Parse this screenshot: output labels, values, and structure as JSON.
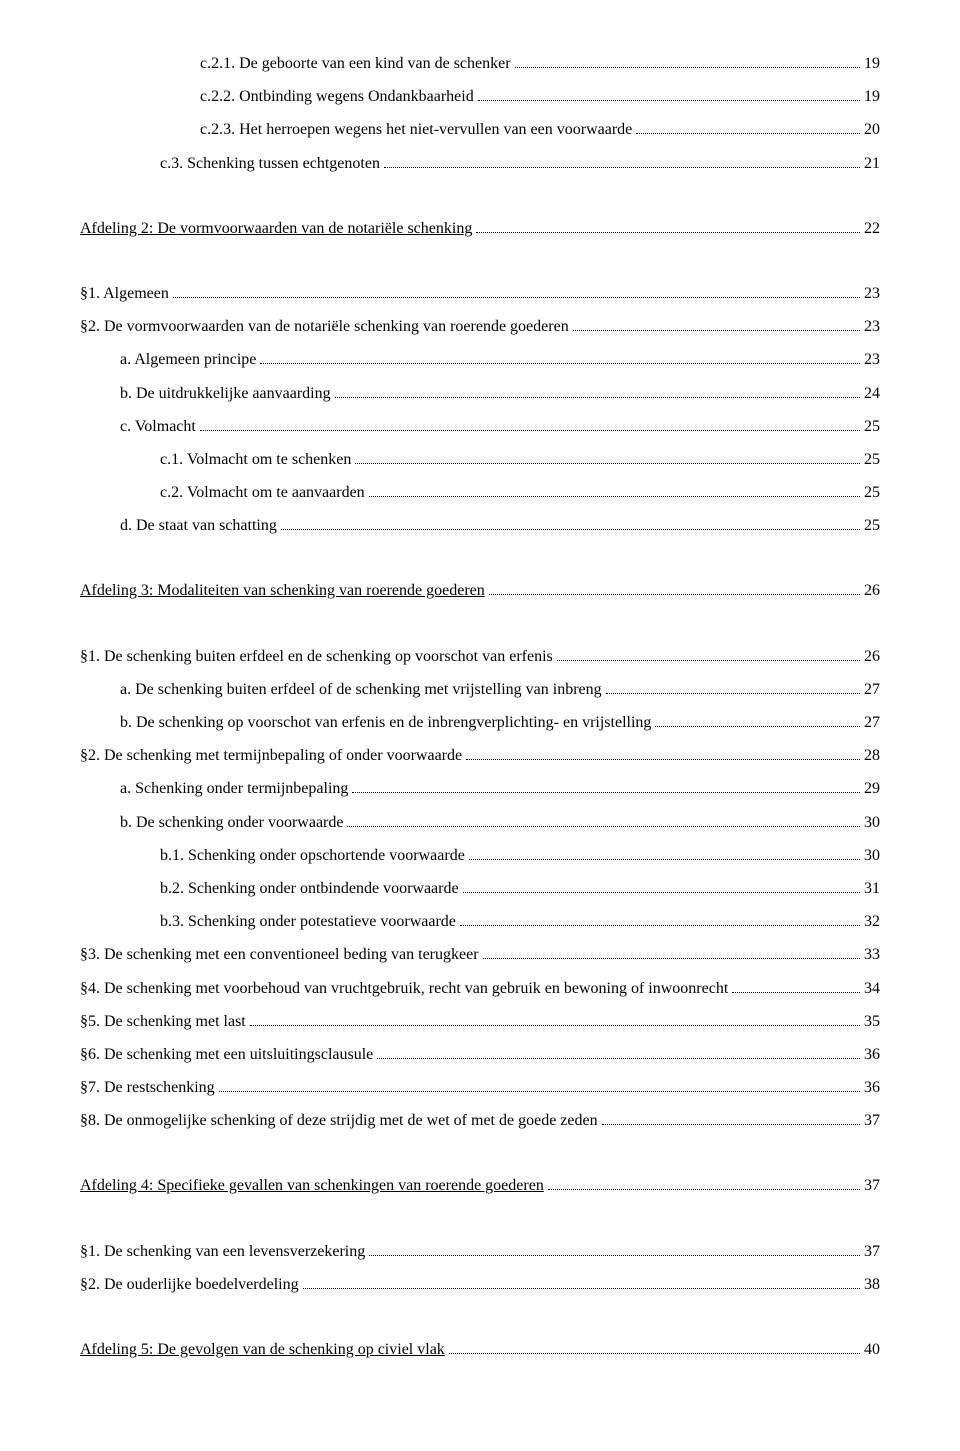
{
  "entries": [
    {
      "indent": 3,
      "label": "c.2.1. De geboorte van een kind van de schenker",
      "page": "19",
      "heading": false
    },
    {
      "indent": 3,
      "label": "c.2.2. Ontbinding wegens Ondankbaarheid",
      "page": "19",
      "heading": false
    },
    {
      "indent": 3,
      "label": "c.2.3. Het herroepen wegens het niet-vervullen van een voorwaarde",
      "page": "20",
      "heading": false
    },
    {
      "indent": 2,
      "label": "c.3. Schenking tussen echtgenoten",
      "page": "21",
      "heading": false
    },
    {
      "indent": 0,
      "label": "Afdeling 2: De vormvoorwaarden van de notariële schenking",
      "page": "22",
      "heading": true
    },
    {
      "indent": 0,
      "label": "§1. Algemeen",
      "page": "23",
      "heading": false
    },
    {
      "indent": 0,
      "label": "§2. De vormvoorwaarden van de notariële schenking van roerende goederen",
      "page": "23",
      "heading": false
    },
    {
      "indent": 1,
      "label": "a. Algemeen principe",
      "page": "23",
      "heading": false
    },
    {
      "indent": 1,
      "label": "b. De uitdrukkelijke aanvaarding",
      "page": "24",
      "heading": false
    },
    {
      "indent": 1,
      "label": "c. Volmacht",
      "page": "25",
      "heading": false
    },
    {
      "indent": 2,
      "label": "c.1. Volmacht om te schenken",
      "page": "25",
      "heading": false
    },
    {
      "indent": 2,
      "label": "c.2. Volmacht om te aanvaarden",
      "page": "25",
      "heading": false
    },
    {
      "indent": 1,
      "label": "d. De staat van schatting",
      "page": "25",
      "heading": false
    },
    {
      "indent": 0,
      "label": "Afdeling 3: Modaliteiten van schenking van roerende goederen",
      "page": "26",
      "heading": true
    },
    {
      "indent": 0,
      "label": "§1. De schenking buiten erfdeel en de schenking op voorschot van erfenis",
      "page": "26",
      "heading": false
    },
    {
      "indent": 1,
      "label": "a. De schenking buiten erfdeel of de schenking met vrijstelling van inbreng",
      "page": "27",
      "heading": false
    },
    {
      "indent": 1,
      "label": "b. De schenking op voorschot van erfenis en de inbrengverplichting- en vrijstelling",
      "page": "27",
      "heading": false
    },
    {
      "indent": 0,
      "label": "§2. De schenking met termijnbepaling of onder voorwaarde",
      "page": "28",
      "heading": false
    },
    {
      "indent": 1,
      "label": "a. Schenking onder termijnbepaling",
      "page": "29",
      "heading": false
    },
    {
      "indent": 1,
      "label": "b. De schenking onder voorwaarde",
      "page": "30",
      "heading": false
    },
    {
      "indent": 2,
      "label": "b.1. Schenking onder opschortende voorwaarde",
      "page": "30",
      "heading": false
    },
    {
      "indent": 2,
      "label": "b.2. Schenking onder ontbindende voorwaarde",
      "page": "31",
      "heading": false
    },
    {
      "indent": 2,
      "label": "b.3. Schenking onder potestatieve voorwaarde",
      "page": "32",
      "heading": false
    },
    {
      "indent": 0,
      "label": "§3. De schenking met een conventioneel beding van terugkeer",
      "page": "33",
      "heading": false
    },
    {
      "indent": 0,
      "label": "§4. De schenking met voorbehoud van vruchtgebruik, recht van gebruik en bewoning of inwoonrecht",
      "page": "34",
      "heading": false
    },
    {
      "indent": 0,
      "label": "§5. De schenking met last",
      "page": "35",
      "heading": false
    },
    {
      "indent": 0,
      "label": "§6. De schenking met een uitsluitingsclausule",
      "page": "36",
      "heading": false
    },
    {
      "indent": 0,
      "label": "§7. De restschenking",
      "page": "36",
      "heading": false
    },
    {
      "indent": 0,
      "label": "§8. De onmogelijke schenking of deze strijdig met de wet of met de goede zeden",
      "page": "37",
      "heading": false
    },
    {
      "indent": 0,
      "label": "Afdeling 4: Specifieke gevallen van schenkingen van roerende goederen",
      "page": "37",
      "heading": true
    },
    {
      "indent": 0,
      "label": "§1. De schenking van een levensverzekering",
      "page": "37",
      "heading": false
    },
    {
      "indent": 0,
      "label": "§2. De ouderlijke boedelverdeling",
      "page": "38",
      "heading": false
    },
    {
      "indent": 0,
      "label": "Afdeling 5: De gevolgen van de schenking op civiel vlak",
      "page": "40",
      "heading": true
    }
  ]
}
